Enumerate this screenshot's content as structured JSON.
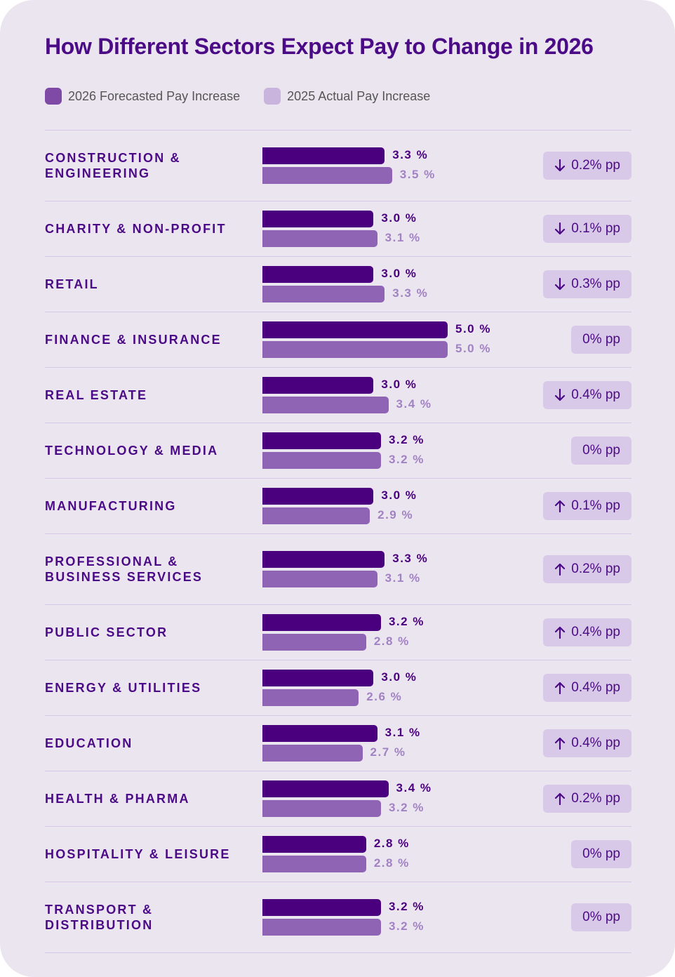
{
  "title": "How Different Sectors Expect Pay to Change in 2026",
  "legend": [
    {
      "label": "2026 Forecasted Pay Increase",
      "color": "#7e4aa6"
    },
    {
      "label": "2025 Actual Pay Increase",
      "color": "#c9b4dd"
    }
  ],
  "colors": {
    "forecast_bar": "#4a007e",
    "actual_bar": "#9064b5",
    "badge_bg": "#d9c9e8",
    "title": "#4b0a86"
  },
  "chart_data": {
    "type": "bar",
    "orientation": "horizontal",
    "title": "How Different Sectors Expect Pay to Change in 2026",
    "categories": [
      "CONSTRUCTION & ENGINEERING",
      "CHARITY & NON-PROFIT",
      "RETAIL",
      "FINANCE & INSURANCE",
      "REAL ESTATE",
      "TECHNOLOGY & MEDIA",
      "MANUFACTURING",
      "PROFESSIONAL & BUSINESS SERVICES",
      "PUBLIC SECTOR",
      "ENERGY & UTILITIES",
      "EDUCATION",
      "HEALTH & PHARMA",
      "HOSPITALITY & LEISURE",
      "TRANSPORT & DISTRIBUTION"
    ],
    "series": [
      {
        "name": "2026 Forecasted Pay Increase",
        "values": [
          3.3,
          3.0,
          3.0,
          5.0,
          3.0,
          3.2,
          3.0,
          3.3,
          3.2,
          3.0,
          3.1,
          3.4,
          2.8,
          3.2
        ]
      },
      {
        "name": "2025 Actual Pay Increase",
        "values": [
          3.5,
          3.1,
          3.3,
          5.0,
          3.4,
          3.2,
          2.9,
          3.1,
          2.8,
          2.6,
          2.7,
          3.2,
          2.8,
          3.2
        ]
      }
    ],
    "value_labels_forecast": [
      "3.3 %",
      "3.0 %",
      "3.0 %",
      "5.0 %",
      "3.0 %",
      "3.2 %",
      "3.0 %",
      "3.3 %",
      "3.2 %",
      "3.0 %",
      "3.1 %",
      "3.4 %",
      "2.8 %",
      "3.2 %"
    ],
    "value_labels_actual": [
      "3.5 %",
      "3.1 %",
      "3.3 %",
      "5.0 %",
      "3.4 %",
      "3.2 %",
      "2.9 %",
      "3.1 %",
      "2.8 %",
      "2.6 %",
      "2.7 %",
      "3.2 %",
      "2.8 %",
      "3.2 %"
    ],
    "change_labels": [
      "0.2% pp",
      "0.1% pp",
      "0.3% pp",
      "0% pp",
      "0.4% pp",
      "0% pp",
      "0.1% pp",
      "0.2% pp",
      "0.4% pp",
      "0.4% pp",
      "0.4% pp",
      "0.2% pp",
      "0% pp",
      "0% pp"
    ],
    "change_direction": [
      "down",
      "down",
      "down",
      "none",
      "down",
      "none",
      "up",
      "up",
      "up",
      "up",
      "up",
      "up",
      "none",
      "none"
    ],
    "legend_position": "top-left"
  },
  "rows": [
    {
      "label_lines": [
        "CONSTRUCTION &",
        "ENGINEERING"
      ]
    },
    {
      "label_lines": [
        "CHARITY & NON-PROFIT"
      ]
    },
    {
      "label_lines": [
        "RETAIL"
      ]
    },
    {
      "label_lines": [
        "FINANCE & INSURANCE"
      ]
    },
    {
      "label_lines": [
        "REAL ESTATE"
      ]
    },
    {
      "label_lines": [
        "TECHNOLOGY & MEDIA"
      ]
    },
    {
      "label_lines": [
        "MANUFACTURING"
      ]
    },
    {
      "label_lines": [
        "PROFESSIONAL &",
        "BUSINESS SERVICES"
      ]
    },
    {
      "label_lines": [
        "PUBLIC SECTOR"
      ]
    },
    {
      "label_lines": [
        "ENERGY & UTILITIES"
      ]
    },
    {
      "label_lines": [
        "EDUCATION"
      ]
    },
    {
      "label_lines": [
        "HEALTH & PHARMA"
      ]
    },
    {
      "label_lines": [
        "HOSPITALITY & LEISURE"
      ]
    },
    {
      "label_lines": [
        "TRANSPORT &",
        "DISTRIBUTION"
      ]
    }
  ]
}
